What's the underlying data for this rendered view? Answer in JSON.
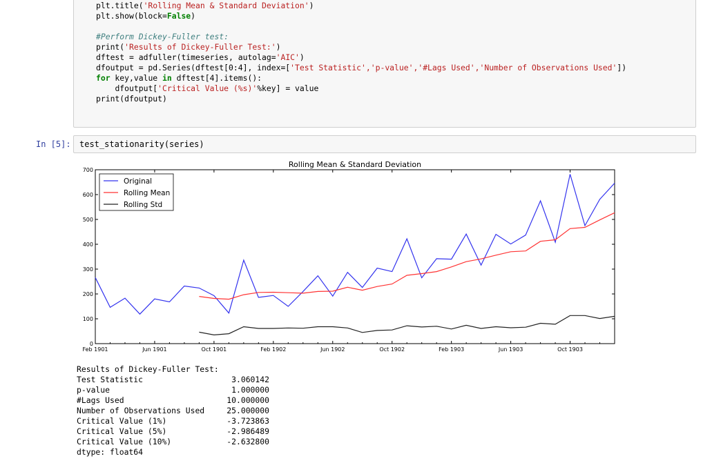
{
  "cell4": {
    "lines": [
      {
        "pre": "plt.title(",
        "str": "'Rolling Mean & Standard Deviation'",
        "post": ")"
      },
      {
        "pre": "plt.show(block=",
        "kw": "False",
        "post": ")"
      },
      {
        "blank": true
      },
      {
        "comment": "#Perform Dickey-Fuller test:"
      },
      {
        "pre": "print(",
        "str": "'Results of Dickey-Fuller Test:'",
        "post": ")"
      },
      {
        "pre": "dftest = adfuller(timeseries, autolag=",
        "str": "'AIC'",
        "post": ")"
      },
      {
        "pre": "dfoutput = pd.Series(dftest[0:4], index=[",
        "str": "'Test Statistic','p-value','#Lags Used','Number of Observations Used'",
        "post": "])"
      },
      {
        "kwfirst": "for",
        "pre": " key,value ",
        "kw": "in",
        "post": " dftest[4].items():"
      },
      {
        "indent": "    ",
        "pre": "dfoutput[",
        "str": "'Critical Value (%s)'",
        "post": "%key] = value"
      },
      {
        "pre": "print(dfoutput)"
      }
    ]
  },
  "cell5": {
    "prompt": "In [5]:",
    "code": "test_stationarity(series)"
  },
  "chart_data": {
    "type": "line",
    "title": "Rolling Mean & Standard Deviation",
    "xlabel": "",
    "ylabel": "",
    "ylim": [
      0,
      700
    ],
    "yticks": [
      0,
      100,
      200,
      300,
      400,
      500,
      600,
      700
    ],
    "xticks": [
      "Feb 1901",
      "Jun 1901",
      "Oct 1901",
      "Feb 1902",
      "Jun 1902",
      "Oct 1902",
      "Feb 1903",
      "Jun 1903",
      "Oct 1903"
    ],
    "legend_position": "top-left",
    "n_points": 36,
    "series": [
      {
        "name": "Original",
        "color": "#3333ee",
        "values": [
          266,
          146,
          183,
          119,
          180,
          168,
          232,
          224,
          193,
          123,
          336,
          186,
          194,
          150,
          210,
          273,
          191,
          287,
          226,
          304,
          290,
          422,
          265,
          342,
          340,
          441,
          316,
          440,
          401,
          437,
          575,
          408,
          682,
          475,
          581,
          646
        ]
      },
      {
        "name": "Rolling Mean",
        "color": "#ff3333",
        "values": [
          null,
          null,
          null,
          null,
          null,
          null,
          null,
          190,
          182,
          179,
          197,
          206,
          207,
          205,
          203,
          210,
          211,
          227,
          215,
          230,
          240,
          275,
          282,
          290,
          309,
          330,
          341,
          356,
          370,
          373,
          412,
          418,
          463,
          468,
          498,
          527
        ]
      },
      {
        "name": "Rolling Std",
        "color": "#222222",
        "values": [
          null,
          null,
          null,
          null,
          null,
          null,
          null,
          46,
          35,
          40,
          68,
          61,
          61,
          63,
          62,
          68,
          68,
          63,
          45,
          53,
          55,
          72,
          67,
          70,
          59,
          74,
          61,
          68,
          64,
          66,
          82,
          78,
          113,
          113,
          101,
          110
        ]
      }
    ]
  },
  "output_text": {
    "header": "Results of Dickey-Fuller Test:",
    "rows": [
      {
        "label": "Test Statistic",
        "value": "3.060142"
      },
      {
        "label": "p-value",
        "value": "1.000000"
      },
      {
        "label": "#Lags Used",
        "value": "10.000000"
      },
      {
        "label": "Number of Observations Used",
        "value": "25.000000"
      },
      {
        "label": "Critical Value (1%)",
        "value": "-3.723863"
      },
      {
        "label": "Critical Value (5%)",
        "value": "-2.986489"
      },
      {
        "label": "Critical Value (10%)",
        "value": "-2.632800"
      }
    ],
    "dtype": "dtype: float64"
  }
}
